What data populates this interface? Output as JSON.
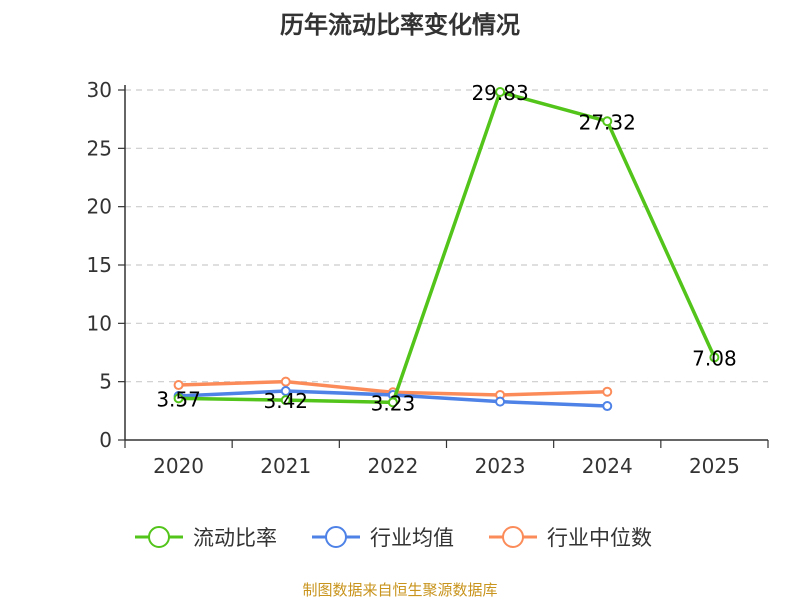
{
  "chart_data": {
    "type": "line",
    "title": "历年流动比率变化情况",
    "categories": [
      "2020",
      "2021",
      "2022",
      "2023",
      "2024",
      "2025"
    ],
    "ylim": [
      0,
      30
    ],
    "yticks": [
      0,
      5,
      10,
      15,
      20,
      25,
      30
    ],
    "grid": true,
    "legend_position": "bottom",
    "series": [
      {
        "name": "流动比率",
        "color": "#52c41a",
        "values": [
          3.57,
          3.42,
          3.23,
          29.83,
          27.32,
          7.08
        ],
        "labels": [
          "3.57",
          "3.42",
          "3.23",
          "29.83",
          "27.32",
          "7.08"
        ]
      },
      {
        "name": "行业均值",
        "color": "#4e82e6",
        "values": [
          3.77,
          4.2,
          3.86,
          3.29,
          2.91,
          null
        ]
      },
      {
        "name": "行业中位数",
        "color": "#fb8c5a",
        "values": [
          4.71,
          5.0,
          4.09,
          3.86,
          4.14,
          null
        ]
      }
    ],
    "source": "制图数据来自恒生聚源数据库"
  }
}
